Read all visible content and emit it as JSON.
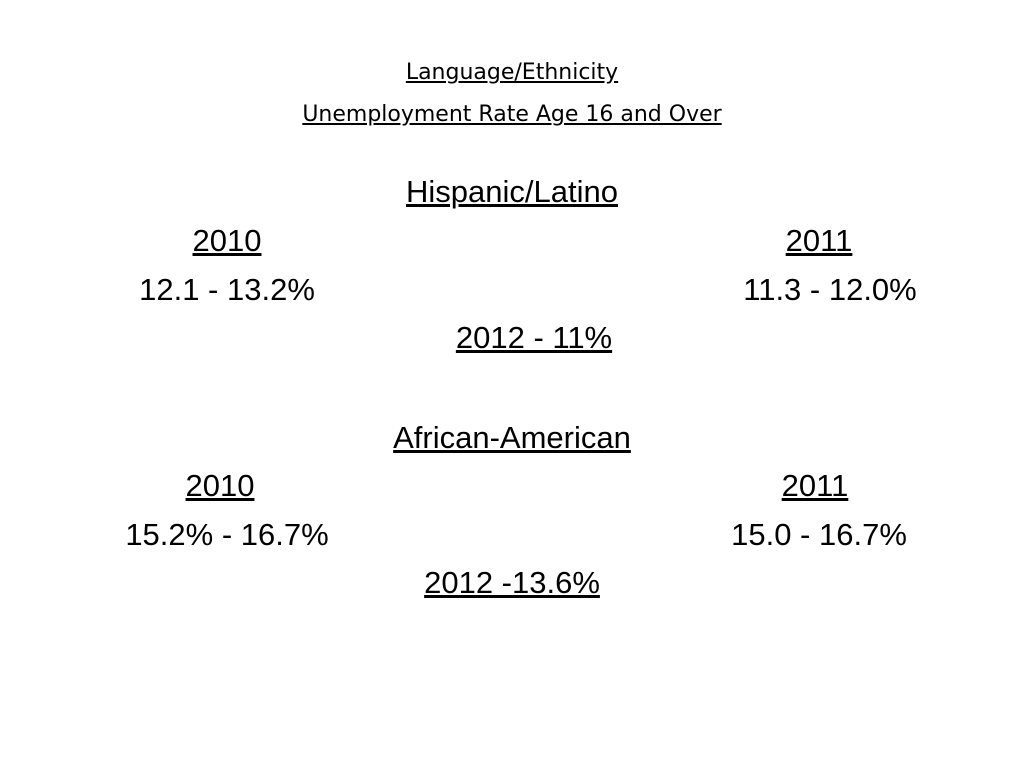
{
  "title": {
    "line1": "Language/Ethnicity",
    "line2": "Unemployment Rate Age 16 and Over"
  },
  "sections": [
    {
      "heading": "Hispanic/Latino",
      "year_a": "2010",
      "range_a": "12.1 - 13.2%",
      "year_b": "2011",
      "range_b": "11.3 - 12.0%",
      "summary": "2012 - 11%"
    },
    {
      "heading": "African-American",
      "year_a": "2010",
      "range_a": "15.2% - 16.7%",
      "year_b": "2011",
      "range_b": "15.0 - 16.7%",
      "summary": "2012 -13.6%"
    }
  ]
}
